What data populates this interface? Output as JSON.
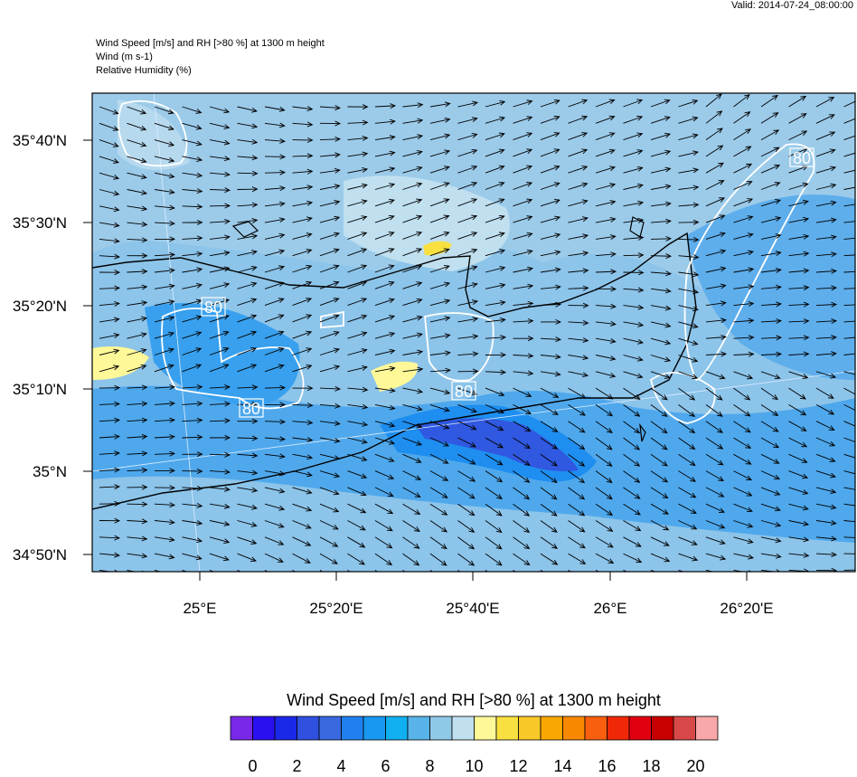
{
  "valid": "Valid: 2014-07-24_08:00:00",
  "header": [
    "Wind Speed [m/s] and RH [>80 %] at 1300 m height",
    "Wind   (m s-1)",
    "Relative Humidity   (%)"
  ],
  "map": {
    "lat_labels": [
      "35°40'N",
      "35°30'N",
      "35°20'N",
      "35°10'N",
      "35°N",
      "34°50'N"
    ],
    "lon_labels": [
      "25°E",
      "25°20'E",
      "25°40'E",
      "26°E",
      "26°20'E"
    ],
    "contour_labels": [
      "80",
      "80",
      "80",
      "80"
    ]
  },
  "colorbar": {
    "title": "Wind Speed [m/s] and RH [>80 %] at 1300 m height",
    "colors": [
      "#7a28e8",
      "#2a10f0",
      "#1a28e8",
      "#3050e0",
      "#3a68e0",
      "#2080f0",
      "#1898f0",
      "#10b0f0",
      "#58b4e8",
      "#90c8e8",
      "#c0e0f0",
      "#fff898",
      "#f8e040",
      "#f8c828",
      "#f8a800",
      "#f88800",
      "#f86010",
      "#f02808",
      "#e00010",
      "#c80000",
      "#d84848",
      "#f8a8a8"
    ],
    "ticks": [
      0,
      2,
      4,
      6,
      8,
      10,
      12,
      14,
      16,
      18,
      20
    ]
  }
}
